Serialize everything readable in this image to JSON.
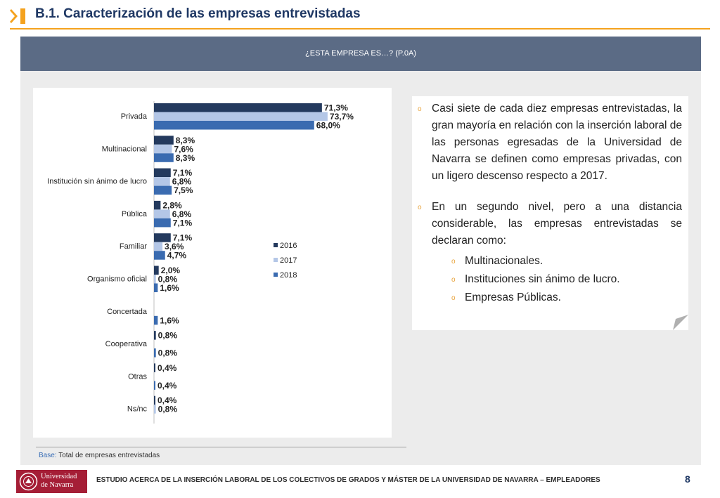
{
  "header": {
    "title": "B.1. Caracterización de las empresas entrevistadas"
  },
  "panel": {
    "header_title": "¿ESTA EMPRESA ES…? (P.0A)"
  },
  "colors": {
    "accent": "#f4a21e",
    "title": "#1f3864",
    "panel_header": "#5b6b85",
    "bullet": "#e8a33c",
    "logo_bg": "#a51e36"
  },
  "chart_data": {
    "type": "bar",
    "orientation": "horizontal",
    "categories": [
      "Privada",
      "Multinacional",
      "Institución sin ánimo de lucro",
      "Pública",
      "Familiar",
      "Organismo oficial",
      "Concertada",
      "Cooperativa",
      "Otras",
      "Ns/nc"
    ],
    "series": [
      {
        "name": "2016",
        "color": "#243a5e",
        "values": [
          71.3,
          8.3,
          7.1,
          2.8,
          7.1,
          2.0,
          null,
          0.8,
          0.4,
          0.4
        ],
        "labels": [
          "71,3%",
          "8,3%",
          "7,1%",
          "2,8%",
          "7,1%",
          "2,0%",
          "",
          "0,8%",
          "0,4%",
          "0,4%"
        ]
      },
      {
        "name": "2017",
        "color": "#b4c7e7",
        "values": [
          73.7,
          7.6,
          6.8,
          6.8,
          3.6,
          0.8,
          null,
          null,
          null,
          0.8
        ],
        "labels": [
          "73,7%",
          "7,6%",
          "6,8%",
          "6,8%",
          "3,6%",
          "0,8%",
          "",
          "",
          "",
          "0,8%"
        ]
      },
      {
        "name": "2018",
        "color": "#3a6bb0",
        "values": [
          68.0,
          8.3,
          7.5,
          7.1,
          4.7,
          1.6,
          1.6,
          0.8,
          0.4,
          null
        ],
        "labels": [
          "68,0%",
          "8,3%",
          "7,5%",
          "7,1%",
          "4,7%",
          "1,6%",
          "1,6%",
          "0,8%",
          "0,4%",
          ""
        ]
      }
    ],
    "legend": "right",
    "grid": false
  },
  "text": {
    "bullets": [
      "Casi siete de cada diez empresas entrevistadas, la gran mayoría en relación con la inserción laboral de las personas egresadas de la Universidad de Navarra se definen como empresas privadas, con un ligero descenso respecto a 2017.",
      "En un segundo nivel, pero a una distancia considerable, las empresas entrevistadas se declaran como:"
    ],
    "sub_bullets": [
      "Multinacionales.",
      "Instituciones sin ánimo de lucro.",
      "Empresas Públicas."
    ]
  },
  "base_note": {
    "label": "Base:",
    "value": "Total de empresas entrevistadas"
  },
  "footer": {
    "logo_line1": "Universidad",
    "logo_line2": "de Navarra",
    "text": "ESTUDIO ACERCA DE LA INSERCIÓN LABORAL DE LOS COLECTIVOS DE GRADOS Y MÁSTER DE LA UNIVERSIDAD DE NAVARRA – EMPLEADORES",
    "page_number": "8"
  }
}
